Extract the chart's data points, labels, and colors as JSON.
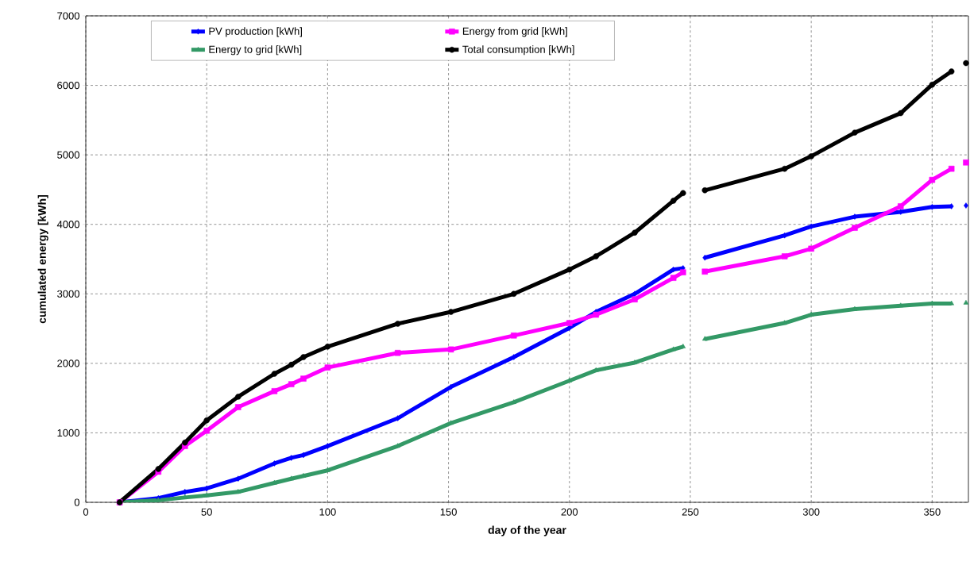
{
  "chart_data": {
    "type": "line",
    "xlabel": "day of the year",
    "ylabel": "cumulated energy [kWh]",
    "x": [
      14,
      30,
      41,
      50,
      63,
      78,
      85,
      90,
      100,
      129,
      151,
      177,
      200,
      211,
      227,
      243,
      247,
      252,
      256,
      289,
      300,
      318,
      337,
      350,
      358,
      361,
      364
    ],
    "series": [
      {
        "name": "PV production [kWh]",
        "color": "#0000ff",
        "marker": "diamond",
        "values": [
          0,
          60,
          150,
          200,
          340,
          560,
          640,
          680,
          810,
          1210,
          1660,
          2090,
          2510,
          2740,
          3000,
          3350,
          3370,
          null,
          3520,
          3840,
          3970,
          4110,
          4180,
          4250,
          4260,
          null,
          4270
        ]
      },
      {
        "name": "Energy from grid [kWh]",
        "color": "#ff00ff",
        "marker": "square",
        "values": [
          0,
          440,
          810,
          1030,
          1370,
          1600,
          1700,
          1780,
          1940,
          2150,
          2200,
          2400,
          2580,
          2700,
          2920,
          3230,
          3310,
          null,
          3320,
          3540,
          3650,
          3950,
          4260,
          4640,
          4800,
          null,
          4890
        ]
      },
      {
        "name": "Energy to grid [kWh]",
        "color": "#339966",
        "marker": "triangle",
        "values": [
          0,
          30,
          70,
          100,
          150,
          280,
          340,
          380,
          460,
          810,
          1140,
          1440,
          1750,
          1900,
          2010,
          2200,
          2240,
          null,
          2350,
          2580,
          2700,
          2780,
          2830,
          2860,
          2860,
          null,
          2870
        ]
      },
      {
        "name": "Total consumption [kWh]",
        "color": "#000000",
        "marker": "circle",
        "values": [
          0,
          480,
          860,
          1180,
          1520,
          1850,
          1980,
          2090,
          2240,
          2570,
          2740,
          3000,
          3350,
          3540,
          3880,
          4340,
          4450,
          null,
          4490,
          4800,
          4980,
          5320,
          5600,
          6010,
          6200,
          null,
          6320
        ]
      }
    ],
    "xlim": [
      0,
      365
    ],
    "xticks": [
      0,
      50,
      100,
      150,
      200,
      250,
      300,
      350
    ],
    "ylim": [
      0,
      7000
    ],
    "yticks": [
      0,
      1000,
      2000,
      3000,
      4000,
      5000,
      6000,
      7000
    ],
    "grid": true,
    "legend": "top",
    "line_style": "solid"
  }
}
